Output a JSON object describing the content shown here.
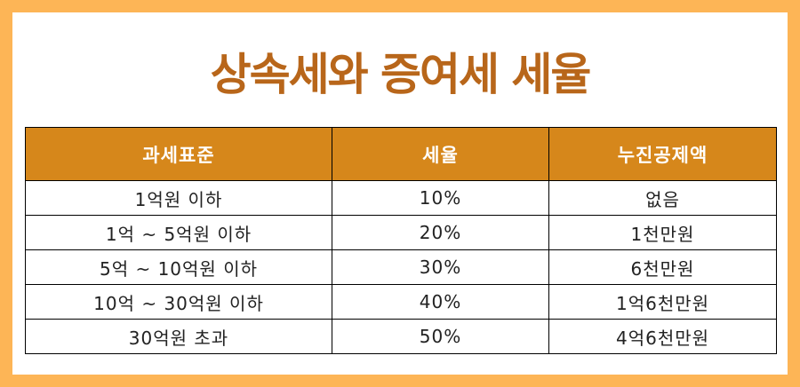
{
  "title": "상속세와 증여세 세율",
  "table": {
    "headers": [
      "과세표준",
      "세율",
      "누진공제액"
    ],
    "rows": [
      [
        "1억원 이하",
        "10%",
        "없음"
      ],
      [
        "1억 ~ 5억원 이하",
        "20%",
        "1천만원"
      ],
      [
        "5억 ~ 10억원 이하",
        "30%",
        "6천만원"
      ],
      [
        "10억 ~ 30억원 이하",
        "40%",
        "1억6천만원"
      ],
      [
        "30억원 초과",
        "50%",
        "4억6천만원"
      ]
    ]
  },
  "colors": {
    "background": "#FDB556",
    "title": "#B8661A",
    "header_fill": "#D6871B",
    "header_text": "#FFFFFF"
  }
}
